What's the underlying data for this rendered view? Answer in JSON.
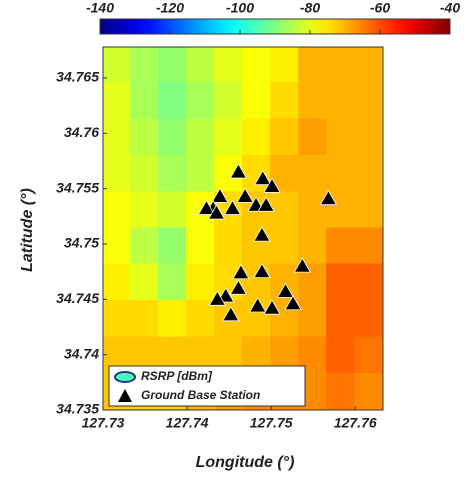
{
  "chart_data": {
    "type": "contour",
    "xlabel": "Longitude (°)",
    "ylabel": "Latitude (°)",
    "xlim": [
      127.73,
      127.7633
    ],
    "ylim": [
      34.735,
      34.7678
    ],
    "xticks": [
      127.73,
      127.74,
      127.75,
      127.76
    ],
    "yticks": [
      34.735,
      34.74,
      34.745,
      34.75,
      34.755,
      34.76,
      34.765
    ],
    "colorbar": {
      "colormap": "jet",
      "lim": [
        -140,
        -40
      ],
      "ticks": [
        -140,
        -120,
        -100,
        -80,
        -60,
        -40
      ]
    },
    "legend": "lower left",
    "series": [
      {
        "name": "RSRP [dBm]",
        "type": "contour",
        "x": [
          127.7317,
          127.735,
          127.7383,
          127.7417,
          127.745,
          127.7483,
          127.7517,
          127.755,
          127.7583,
          127.7617
        ],
        "y": [
          34.7662,
          34.7629,
          34.7596,
          34.7563,
          34.753,
          34.7498,
          34.7465,
          34.7432,
          34.7399,
          34.7366
        ],
        "z": [
          [
            -82,
            -86,
            -88,
            -84,
            -80,
            -78,
            -76,
            -70,
            -70,
            -70
          ],
          [
            -80,
            -86,
            -90,
            -86,
            -82,
            -78,
            -74,
            -70,
            -70,
            -70
          ],
          [
            -80,
            -84,
            -88,
            -84,
            -80,
            -76,
            -72,
            -68,
            -70,
            -70
          ],
          [
            -80,
            -82,
            -86,
            -84,
            -78,
            -74,
            -70,
            -70,
            -70,
            -70
          ],
          [
            -78,
            -80,
            -82,
            -78,
            -74,
            -72,
            -72,
            -70,
            -70,
            -70
          ],
          [
            -78,
            -84,
            -88,
            -78,
            -74,
            -72,
            -72,
            -70,
            -66,
            -66
          ],
          [
            -76,
            -80,
            -86,
            -76,
            -74,
            -72,
            -70,
            -68,
            -62,
            -62
          ],
          [
            -74,
            -74,
            -76,
            -74,
            -72,
            -72,
            -70,
            -68,
            -62,
            -62
          ],
          [
            -72,
            -72,
            -72,
            -72,
            -72,
            -70,
            -68,
            -66,
            -62,
            -64
          ],
          [
            -72,
            -72,
            -72,
            -70,
            -68,
            -66,
            -66,
            -66,
            -64,
            -66
          ]
        ]
      },
      {
        "name": "Ground Base Station",
        "type": "scatter",
        "color": "#000000",
        "x": [
          127.7461,
          127.749,
          127.7501,
          127.7469,
          127.7439,
          127.7431,
          127.7454,
          127.7423,
          127.7435,
          127.7482,
          127.7494,
          127.7568,
          127.7489,
          127.7464,
          127.7489,
          127.7537,
          127.7461,
          127.7446,
          127.7436,
          127.7517,
          127.7526,
          127.7484,
          127.7501,
          127.7452
        ],
        "y": [
          34.7565,
          34.7559,
          34.7552,
          34.7543,
          34.7543,
          34.7532,
          34.7532,
          34.7532,
          34.7528,
          34.7535,
          34.7535,
          34.7541,
          34.7508,
          34.7474,
          34.7475,
          34.748,
          34.746,
          34.7453,
          34.745,
          34.7457,
          34.7446,
          34.7444,
          34.7442,
          34.7436
        ]
      }
    ]
  }
}
